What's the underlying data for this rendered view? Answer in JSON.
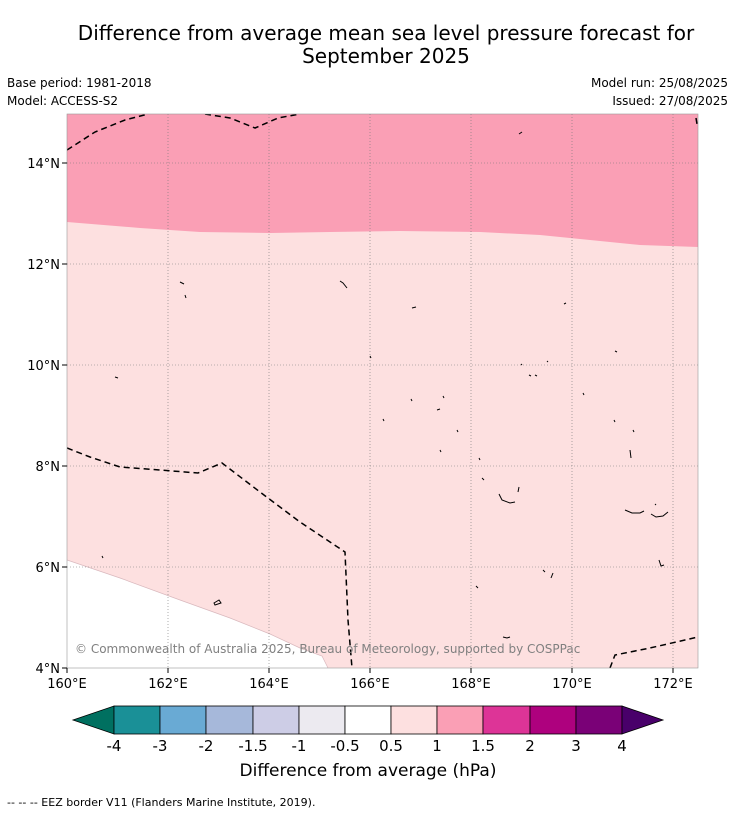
{
  "title_line1": "Difference from average mean sea level pressure forecast for",
  "title_line2": "September 2025",
  "meta": {
    "base_period": "Base period: 1981-2018",
    "model": "Model: ACCESS-S2",
    "model_run": "Model run: 25/08/2025",
    "issued": "Issued: 27/08/2025"
  },
  "map": {
    "lon_labels": [
      "160°E",
      "162°E",
      "164°E",
      "166°E",
      "168°E",
      "170°E",
      "172°E"
    ],
    "lat_labels": [
      "14°N",
      "12°N",
      "10°N",
      "8°N",
      "6°N",
      "4°N"
    ],
    "copyright": "© Commonwealth of Australia 2025, Bureau of Meteorology, supported by COSPPac"
  },
  "legend": {
    "title": "Difference from average (hPa)",
    "tick_labels": [
      "-4",
      "-3",
      "-2",
      "-1.5",
      "-1",
      "-0.5",
      "0.5",
      "1",
      "1.5",
      "2",
      "3",
      "4"
    ],
    "colors": {
      "below_min": "#007060",
      "c1": "#1a9097",
      "c2": "#69aad4",
      "c3": "#a6b8da",
      "c4": "#cdcde6",
      "c5": "#eceaf0",
      "c6": "#ffffff",
      "c7": "#fde0e0",
      "c8": "#fa9fb5",
      "c9": "#dd3497",
      "c10": "#ae017e",
      "c11": "#7a0177",
      "above_max": "#49006a"
    }
  },
  "footer": "--  --  -- EEZ border V11 (Flanders Marine Institute, 2019)."
}
